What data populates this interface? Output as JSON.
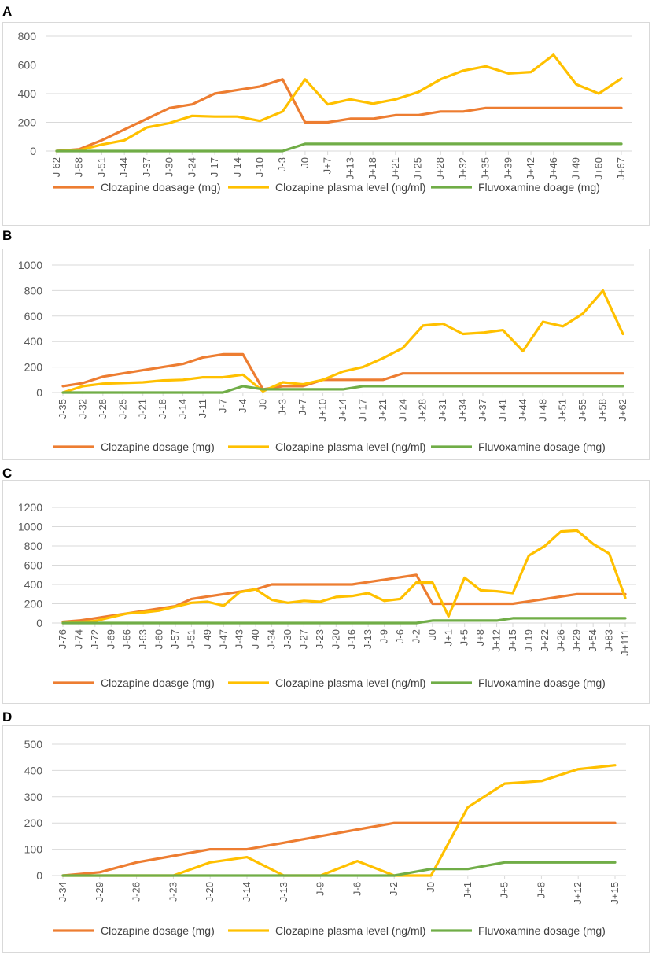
{
  "colors": {
    "clozapine_dosage": "#ED7D31",
    "clozapine_plasma": "#FFC000",
    "fluvoxamine": "#70AD47",
    "grid": "#D9D9D9",
    "text": "#595959"
  },
  "chart_data": [
    {
      "panel": "A",
      "type": "line",
      "ylim": [
        0,
        800
      ],
      "yticks": [
        0,
        200,
        400,
        600,
        800
      ],
      "legend_position": "bottom",
      "categories": [
        "J-62",
        "J-58",
        "J-51",
        "J-44",
        "J-37",
        "J-30",
        "J-24",
        "J-17",
        "J-14",
        "J-10",
        "J-3",
        "J0",
        "J+7",
        "J+13",
        "J+18",
        "J+21",
        "J+25",
        "J+28",
        "J+32",
        "J+35",
        "J+39",
        "J+42",
        "J+46",
        "J+49",
        "J+60",
        "J+67"
      ],
      "series": [
        {
          "name": "Clozapine doasage (mg)",
          "color_key": "clozapine_dosage",
          "values": [
            0,
            12.5,
            75,
            150,
            225,
            300,
            325,
            400,
            425,
            450,
            500,
            200,
            200,
            225,
            225,
            250,
            250,
            275,
            275,
            300,
            300,
            300,
            300,
            300,
            300,
            300
          ]
        },
        {
          "name": "Clozapine plasma level (ng/ml)",
          "color_key": "clozapine_plasma",
          "values": [
            0,
            5,
            45,
            75,
            165,
            195,
            245,
            240,
            240,
            210,
            275,
            500,
            325,
            360,
            330,
            360,
            410,
            500,
            560,
            590,
            540,
            550,
            670,
            465,
            400,
            505
          ]
        },
        {
          "name": "Fluvoxamine doage (mg)",
          "color_key": "fluvoxamine",
          "values": [
            0,
            0,
            0,
            0,
            0,
            0,
            0,
            0,
            0,
            0,
            0,
            50,
            50,
            50,
            50,
            50,
            50,
            50,
            50,
            50,
            50,
            50,
            50,
            50,
            50,
            50
          ]
        }
      ]
    },
    {
      "panel": "B",
      "type": "line",
      "ylim": [
        0,
        1000
      ],
      "yticks": [
        0,
        200,
        400,
        600,
        800,
        1000
      ],
      "legend_position": "bottom",
      "categories": [
        "J-35",
        "J-32",
        "J-28",
        "J-25",
        "J-21",
        "J-18",
        "J-14",
        "J-11",
        "J-7",
        "J-4",
        "J0",
        "J+3",
        "J+7",
        "J+10",
        "J+14",
        "J+17",
        "J+21",
        "J+24",
        "J+28",
        "J+31",
        "J+34",
        "J+37",
        "J+41",
        "J+44",
        "J+48",
        "J+51",
        "J+55",
        "J+58",
        "J+62"
      ],
      "series": [
        {
          "name": "Clozapine dosage (mg)",
          "color_key": "clozapine_dosage",
          "values": [
            50,
            75,
            125,
            150,
            175,
            200,
            225,
            275,
            300,
            300,
            25,
            50,
            50,
            100,
            100,
            100,
            100,
            150,
            150,
            150,
            150,
            150,
            150,
            150,
            150,
            150,
            150,
            150,
            150
          ]
        },
        {
          "name": "Clozapine plasma level (ng/ml)",
          "color_key": "clozapine_plasma",
          "values": [
            0,
            50,
            70,
            75,
            80,
            95,
            100,
            120,
            120,
            140,
            10,
            80,
            65,
            100,
            165,
            200,
            270,
            350,
            525,
            540,
            460,
            470,
            490,
            325,
            555,
            520,
            620,
            800,
            460
          ]
        },
        {
          "name": "Fluvoxamine dosage (mg)",
          "color_key": "fluvoxamine",
          "values": [
            0,
            0,
            0,
            0,
            0,
            0,
            0,
            0,
            0,
            50,
            25,
            25,
            25,
            25,
            25,
            50,
            50,
            50,
            50,
            50,
            50,
            50,
            50,
            50,
            50,
            50,
            50,
            50,
            50
          ]
        }
      ]
    },
    {
      "panel": "C",
      "type": "line",
      "ylim": [
        0,
        1200
      ],
      "yticks": [
        0,
        200,
        400,
        600,
        800,
        1000,
        1200
      ],
      "legend_position": "bottom",
      "categories": [
        "J-76",
        "J-74",
        "J-72",
        "J-69",
        "J-66",
        "J-63",
        "J-60",
        "J-57",
        "J-51",
        "J-49",
        "J-47",
        "J-43",
        "J-40",
        "J-34",
        "J-30",
        "J-27",
        "J-23",
        "J-20",
        "J-16",
        "J-13",
        "J-9",
        "J-6",
        "J-2",
        "J0",
        "J+1",
        "J+5",
        "J+8",
        "J+12",
        "J+15",
        "J+19",
        "J+22",
        "J+26",
        "J+29",
        "J+54",
        "J+83",
        "J+111"
      ],
      "series": [
        {
          "name": "Clozapine doasge (mg)",
          "color_key": "clozapine_dosage",
          "values": [
            12.5,
            25,
            50,
            75,
            100,
            125,
            150,
            175,
            250,
            275,
            300,
            325,
            350,
            400,
            400,
            400,
            400,
            400,
            400,
            425,
            450,
            475,
            500,
            200,
            200,
            200,
            200,
            200,
            200,
            225,
            250,
            275,
            300,
            300,
            300,
            300
          ]
        },
        {
          "name": "Clozapine plasma level (ng/ml)",
          "color_key": "clozapine_plasma",
          "values": [
            0,
            10,
            20,
            60,
            100,
            110,
            130,
            170,
            210,
            220,
            180,
            320,
            350,
            240,
            210,
            230,
            220,
            270,
            280,
            310,
            230,
            250,
            420,
            420,
            70,
            470,
            340,
            330,
            310,
            700,
            800,
            950,
            960,
            820,
            720,
            260
          ]
        },
        {
          "name": "Fluvoxamine doasge (mg)",
          "color_key": "fluvoxamine",
          "values": [
            0,
            0,
            0,
            0,
            0,
            0,
            0,
            0,
            0,
            0,
            0,
            0,
            0,
            0,
            0,
            0,
            0,
            0,
            0,
            0,
            0,
            0,
            0,
            25,
            25,
            25,
            25,
            25,
            50,
            50,
            50,
            50,
            50,
            50,
            50,
            50
          ]
        }
      ]
    },
    {
      "panel": "D",
      "type": "line",
      "ylim": [
        0,
        500
      ],
      "yticks": [
        0,
        100,
        200,
        300,
        400,
        500
      ],
      "legend_position": "bottom",
      "categories": [
        "J-34",
        "J-29",
        "J-26",
        "J-23",
        "J-20",
        "J-14",
        "J-13",
        "J-9",
        "J-6",
        "J-2",
        "J0",
        "J+1",
        "J+5",
        "J+8",
        "J+12",
        "J+15"
      ],
      "series": [
        {
          "name": "Clozapine dosage (mg)",
          "color_key": "clozapine_dosage",
          "values": [
            0,
            12.5,
            50,
            75,
            100,
            100,
            125,
            150,
            175,
            200,
            200,
            200,
            200,
            200,
            200,
            200
          ]
        },
        {
          "name": "Clozapine plasma level (ng/ml)",
          "color_key": "clozapine_plasma",
          "values": [
            0,
            0,
            0,
            0,
            50,
            70,
            0,
            0,
            55,
            0,
            0,
            260,
            350,
            360,
            405,
            420
          ]
        },
        {
          "name": "Fluvoxamine dosage (mg)",
          "color_key": "fluvoxamine",
          "values": [
            0,
            0,
            0,
            0,
            0,
            0,
            0,
            0,
            0,
            0,
            25,
            25,
            50,
            50,
            50,
            50
          ]
        }
      ]
    }
  ]
}
